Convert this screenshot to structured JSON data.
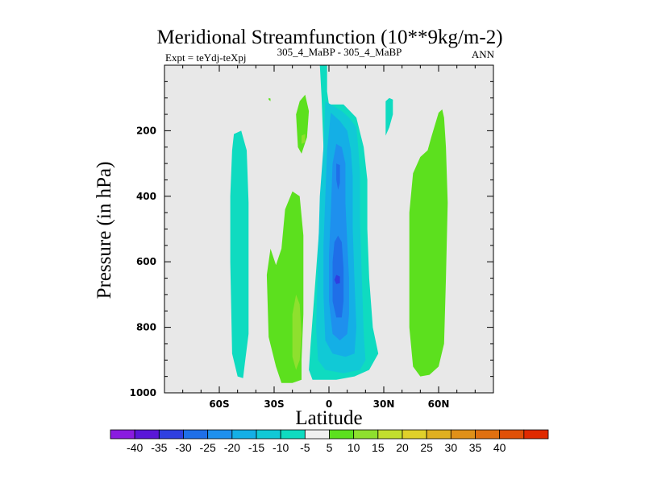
{
  "chart_data": {
    "type": "contour",
    "title": "Meridional Streamfunction (10**9kg/m-2)",
    "left_label": "Expt = teYdj-teXpj",
    "center_label": "305_4_MaBP - 305_4_MaBP",
    "right_label": "ANN",
    "xlabel": "Latitude",
    "ylabel": "Pressure (in hPa)",
    "xlim": [
      -90,
      90
    ],
    "ylim": [
      1000,
      0
    ],
    "y_ticks": [
      {
        "value": 200,
        "label": "200"
      },
      {
        "value": 400,
        "label": "400"
      },
      {
        "value": 600,
        "label": "600"
      },
      {
        "value": 800,
        "label": "800"
      },
      {
        "value": 1000,
        "label": "1000"
      }
    ],
    "x_ticks": [
      {
        "value": -60,
        "label": "60S"
      },
      {
        "value": -30,
        "label": "30S"
      },
      {
        "value": 0,
        "label": "0"
      },
      {
        "value": 30,
        "label": "30N"
      },
      {
        "value": 60,
        "label": "60N"
      }
    ],
    "colorbar": {
      "colors": [
        "#8a1be0",
        "#5a17d8",
        "#2f3fe0",
        "#1f6fe8",
        "#1e90ee",
        "#14afe6",
        "#11c9d6",
        "#0fdbc0",
        "#f0f0f0",
        "#5ce01e",
        "#8ee02e",
        "#c2df2e",
        "#e0d02a",
        "#e0b020",
        "#e09018",
        "#e07010",
        "#e05008",
        "#e02a00"
      ],
      "labels": [
        "-40",
        "-35",
        "-30",
        "-25",
        "-20",
        "-15",
        "-10",
        "-5",
        "5",
        "10",
        "15",
        "20",
        "25",
        "30",
        "35",
        "40"
      ]
    },
    "regions": [
      {
        "name": "sh-polar-cell",
        "color": "#0fdbc0",
        "points": [
          [
            -52,
            210
          ],
          [
            -48,
            200
          ],
          [
            -45,
            260
          ],
          [
            -44,
            420
          ],
          [
            -44,
            620
          ],
          [
            -44,
            820
          ],
          [
            -46,
            910
          ],
          [
            -47,
            955
          ],
          [
            -50,
            950
          ],
          [
            -53,
            880
          ],
          [
            -54,
            600
          ],
          [
            -54,
            400
          ],
          [
            -53,
            260
          ]
        ]
      },
      {
        "name": "sh-ferrel-cell",
        "color": "#5ce01e",
        "points": [
          [
            -29,
            920
          ],
          [
            -33,
            830
          ],
          [
            -34,
            640
          ],
          [
            -32,
            560
          ],
          [
            -29,
            610
          ],
          [
            -26,
            560
          ],
          [
            -24,
            440
          ],
          [
            -20,
            385
          ],
          [
            -16,
            400
          ],
          [
            -14,
            520
          ],
          [
            -14,
            760
          ],
          [
            -15,
            900
          ],
          [
            -15,
            960
          ],
          [
            -20,
            970
          ],
          [
            -26,
            970
          ]
        ]
      },
      {
        "name": "sh-ferrel-core",
        "color": "#8ee02e",
        "points": [
          [
            -20,
            760
          ],
          [
            -18,
            700
          ],
          [
            -16,
            730
          ],
          [
            -15,
            820
          ],
          [
            -16,
            900
          ],
          [
            -18,
            930
          ],
          [
            -20,
            890
          ]
        ]
      },
      {
        "name": "sh-upper-green",
        "color": "#5ce01e",
        "points": [
          [
            -18,
            150
          ],
          [
            -16,
            110
          ],
          [
            -13,
            90
          ],
          [
            -11,
            140
          ],
          [
            -12,
            220
          ],
          [
            -15,
            270
          ],
          [
            -17,
            250
          ]
        ]
      },
      {
        "name": "sh-upper-core",
        "color": "#8ee02e",
        "points": [
          [
            -15,
            215
          ],
          [
            -13,
            210
          ],
          [
            -13,
            235
          ],
          [
            -15,
            240
          ]
        ]
      },
      {
        "name": "sh-upper-sliver",
        "color": "#5ce01e",
        "points": [
          [
            -33,
            100
          ],
          [
            -32,
            102
          ],
          [
            -32,
            110
          ],
          [
            -33,
            105
          ]
        ]
      },
      {
        "name": "tropical-cell",
        "color": "#0fdbc0",
        "points": [
          [
            -5,
            0
          ],
          [
            -4,
            100
          ],
          [
            -3,
            250
          ],
          [
            -4,
            400
          ],
          [
            -8,
            700
          ],
          [
            -10,
            850
          ],
          [
            -11,
            930
          ],
          [
            -9,
            960
          ],
          [
            -3,
            960
          ],
          [
            4,
            960
          ],
          [
            14,
            950
          ],
          [
            22,
            930
          ],
          [
            27,
            880
          ],
          [
            24,
            800
          ],
          [
            22,
            650
          ],
          [
            21,
            500
          ],
          [
            21,
            350
          ],
          [
            19,
            250
          ],
          [
            15,
            160
          ],
          [
            8,
            120
          ],
          [
            0,
            120
          ],
          [
            -1,
            80
          ],
          [
            -1,
            0
          ]
        ]
      },
      {
        "name": "tropical-10",
        "color": "#11c9d6",
        "points": [
          [
            -2,
            110
          ],
          [
            1,
            120
          ],
          [
            7,
            140
          ],
          [
            11,
            160
          ],
          [
            15,
            190
          ],
          [
            16,
            250
          ],
          [
            17,
            330
          ],
          [
            17,
            480
          ],
          [
            18,
            650
          ],
          [
            19,
            820
          ],
          [
            20,
            900
          ],
          [
            17,
            930
          ],
          [
            8,
            940
          ],
          [
            -2,
            930
          ],
          [
            -6,
            900
          ],
          [
            -7,
            800
          ],
          [
            -6,
            600
          ],
          [
            -5,
            400
          ],
          [
            -3,
            250
          ]
        ]
      },
      {
        "name": "tropical-15",
        "color": "#14afe6",
        "points": [
          [
            1,
            145
          ],
          [
            6,
            170
          ],
          [
            10,
            200
          ],
          [
            12,
            260
          ],
          [
            13,
            340
          ],
          [
            13,
            500
          ],
          [
            14,
            660
          ],
          [
            15,
            800
          ],
          [
            14,
            880
          ],
          [
            9,
            890
          ],
          [
            2,
            880
          ],
          [
            -2,
            840
          ],
          [
            -3,
            700
          ],
          [
            -3,
            550
          ],
          [
            -2,
            400
          ],
          [
            -1,
            260
          ]
        ]
      },
      {
        "name": "tropical-20",
        "color": "#1e90ee",
        "points": [
          [
            4,
            240
          ],
          [
            7,
            250
          ],
          [
            9,
            300
          ],
          [
            9,
            420
          ],
          [
            10,
            540
          ],
          [
            11,
            650
          ],
          [
            11,
            760
          ],
          [
            10,
            820
          ],
          [
            6,
            840
          ],
          [
            2,
            820
          ],
          [
            0,
            720
          ],
          [
            0,
            580
          ],
          [
            1,
            450
          ],
          [
            2,
            300
          ]
        ]
      },
      {
        "name": "tropical-25",
        "color": "#1f6fe8",
        "points": [
          [
            4,
            300
          ],
          [
            6,
            305
          ],
          [
            6,
            360
          ],
          [
            5,
            380
          ],
          [
            4,
            350
          ]
        ]
      },
      {
        "name": "tropical-25-lower",
        "color": "#1f6fe8",
        "points": [
          [
            5,
            520
          ],
          [
            7,
            540
          ],
          [
            8,
            620
          ],
          [
            8,
            720
          ],
          [
            7,
            770
          ],
          [
            4,
            770
          ],
          [
            2,
            720
          ],
          [
            2,
            600
          ],
          [
            3,
            540
          ]
        ]
      },
      {
        "name": "tropical-30",
        "color": "#2f3fe0",
        "points": [
          [
            4,
            640
          ],
          [
            6,
            645
          ],
          [
            6,
            665
          ],
          [
            4,
            668
          ],
          [
            3,
            655
          ]
        ]
      },
      {
        "name": "nh-upper-cyan",
        "color": "#0fdbc0",
        "points": [
          [
            31,
            110
          ],
          [
            33,
            100
          ],
          [
            35,
            105
          ],
          [
            35,
            150
          ],
          [
            33,
            190
          ],
          [
            31,
            215
          ]
        ]
      },
      {
        "name": "nh-ferrel-cell",
        "color": "#5ce01e",
        "points": [
          [
            60,
            145
          ],
          [
            62,
            135
          ],
          [
            63,
            160
          ],
          [
            64,
            250
          ],
          [
            65,
            420
          ],
          [
            64,
            650
          ],
          [
            63,
            850
          ],
          [
            60,
            920
          ],
          [
            55,
            945
          ],
          [
            50,
            950
          ],
          [
            46,
            920
          ],
          [
            44,
            800
          ],
          [
            44,
            600
          ],
          [
            44,
            450
          ],
          [
            46,
            330
          ],
          [
            50,
            280
          ],
          [
            54,
            260
          ],
          [
            56,
            220
          ]
        ]
      }
    ]
  }
}
